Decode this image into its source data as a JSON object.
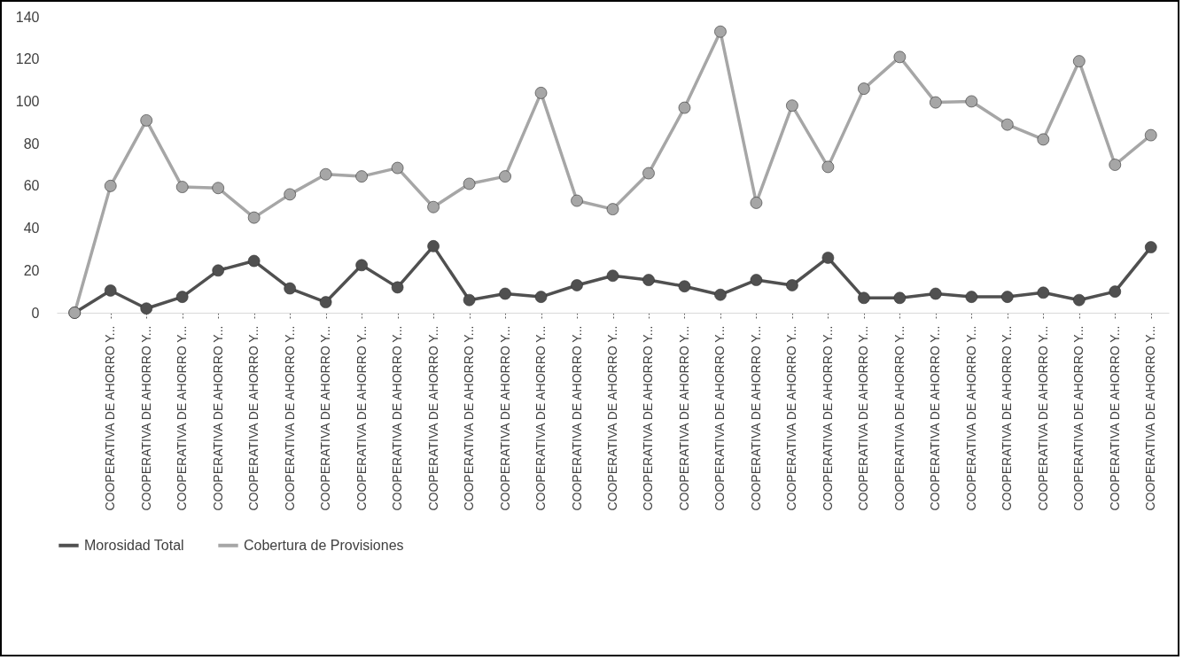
{
  "chart_data": {
    "type": "line",
    "categories": [
      null,
      "COOPERATIVA DE AHORRO Y...",
      "COOPERATIVA DE AHORRO Y...",
      "COOPERATIVA DE AHORRO Y...",
      "COOPERATIVA DE AHORRO Y...",
      "COOPERATIVA DE AHORRO Y...",
      "COOPERATIVA DE AHORRO Y...",
      "COOPERATIVA DE AHORRO Y...",
      "COOPERATIVA DE AHORRO Y...",
      "COOPERATIVA DE AHORRO Y...",
      "COOPERATIVA DE AHORRO Y...",
      "COOPERATIVA DE AHORRO Y...",
      "COOPERATIVA DE AHORRO Y...",
      "COOPERATIVA DE AHORRO Y...",
      "COOPERATIVA DE AHORRO Y...",
      "COOPERATIVA DE AHORRO Y...",
      "COOPERATIVA DE AHORRO Y...",
      "COOPERATIVA DE AHORRO Y...",
      "COOPERATIVA DE AHORRO Y...",
      "COOPERATIVA DE AHORRO Y...",
      "COOPERATIVA DE AHORRO Y...",
      "COOPERATIVA DE AHORRO Y...",
      "COOPERATIVA DE AHORRO Y...",
      "COOPERATIVA DE AHORRO Y...",
      "COOPERATIVA DE AHORRO Y...",
      "COOPERATIVA DE AHORRO Y...",
      "COOPERATIVA DE AHORRO Y...",
      "COOPERATIVA DE AHORRO Y...",
      "COOPERATIVA DE AHORRO Y...",
      "COOPERATIVA DE AHORRO Y...",
      "COOPERATIVA DE AHORRO Y..."
    ],
    "series": [
      {
        "name": "Morosidad Total",
        "color": "#505050",
        "values": [
          0,
          10.5,
          2,
          7.5,
          20,
          24.5,
          11.5,
          5,
          22.5,
          12,
          31.5,
          6,
          9,
          7.5,
          13,
          17.5,
          15.5,
          12.5,
          8.5,
          15.5,
          13,
          26,
          7,
          7,
          9,
          7.5,
          7.5,
          9.5,
          6,
          10,
          31
        ]
      },
      {
        "name": "Cobertura de Provisiones",
        "color": "#a6a6a6",
        "values": [
          0,
          60,
          91,
          59.5,
          59,
          45,
          56,
          65.5,
          64.5,
          68.5,
          50,
          61,
          64.5,
          104,
          53,
          49,
          66,
          97,
          133,
          52,
          98,
          69,
          106,
          121,
          99.5,
          100,
          89,
          82,
          119,
          70,
          84
        ]
      }
    ],
    "ylim": [
      0,
      140
    ],
    "yticks": [
      0,
      20,
      40,
      60,
      80,
      100,
      120,
      140
    ],
    "grid": false,
    "legend": "bottom",
    "marker": "circle",
    "line_style": "solid"
  }
}
